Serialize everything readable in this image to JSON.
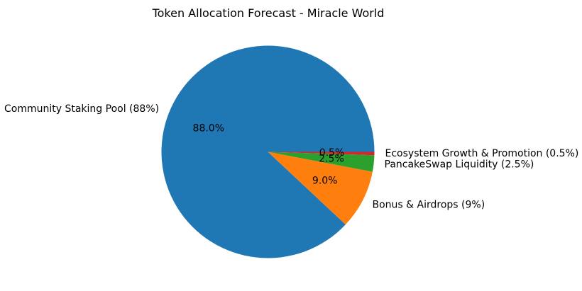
{
  "chart_data": {
    "type": "pie",
    "title": "Token Allocation Forecast - Miracle World",
    "slices": [
      {
        "label": "Community Staking Pool (88%)",
        "value": 88,
        "pct_label": "88.0%",
        "color": "#1f77b4"
      },
      {
        "label": "Bonus & Airdrops (9%)",
        "value": 9,
        "pct_label": "9.0%",
        "color": "#ff7f0e"
      },
      {
        "label": "PancakeSwap Liquidity (2.5%)",
        "value": 2.5,
        "pct_label": "2.5%",
        "color": "#2ca02c"
      },
      {
        "label": "Ecosystem Growth & Promotion (0.5%)",
        "value": 0.5,
        "pct_label": "0.5%",
        "color": "#d62728"
      }
    ],
    "start_angle": 0,
    "counterclock": true,
    "label_distance": 1.1,
    "pct_distance": 0.6,
    "legend": "none",
    "background": "#ffffff",
    "text_color": "#000000"
  }
}
